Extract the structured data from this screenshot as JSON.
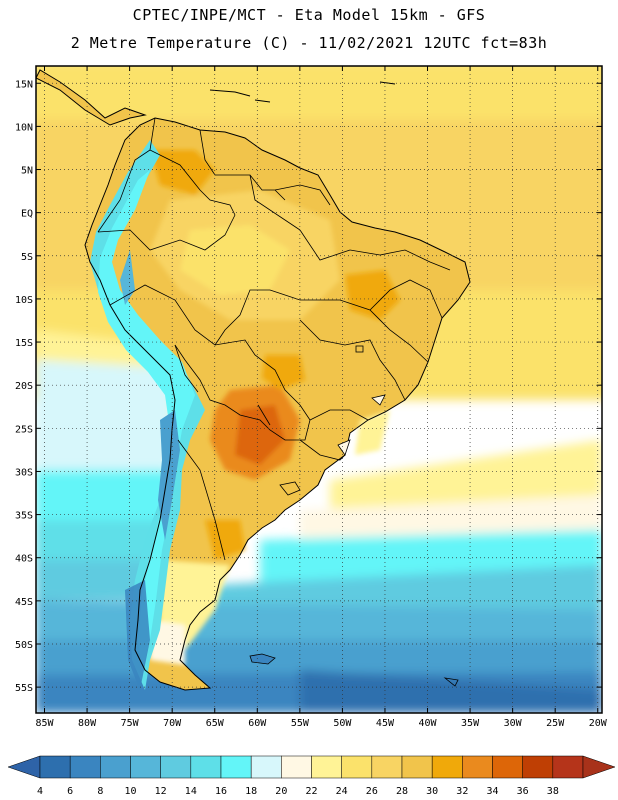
{
  "header": {
    "line1": "CPTEC/INPE/MCT -  Eta Model 15km - GFS",
    "line2": "2 Metre Temperature (C) - 11/02/2021 12UTC fct=83h"
  },
  "map": {
    "lon_range": [
      -86,
      -19.5
    ],
    "lat_range": [
      -58,
      17
    ],
    "lat_labels": [
      "15N",
      "10N",
      "5N",
      "EQ",
      "5S",
      "10S",
      "15S",
      "20S",
      "25S",
      "30S",
      "35S",
      "40S",
      "45S",
      "50S",
      "55S"
    ],
    "lon_labels": [
      "85W",
      "80W",
      "75W",
      "70W",
      "65W",
      "60W",
      "55W",
      "50W",
      "45W",
      "40W",
      "35W",
      "30W",
      "25W",
      "20W"
    ]
  },
  "colorbar": {
    "labels": [
      "4",
      "6",
      "8",
      "10",
      "12",
      "14",
      "16",
      "18",
      "20",
      "22",
      "24",
      "26",
      "28",
      "30",
      "32",
      "34",
      "36",
      "38"
    ],
    "colors": [
      "#2d6fae",
      "#3a85c0",
      "#4aa0cf",
      "#56b6d9",
      "#5fcbe0",
      "#5edfe8",
      "#63f5f8",
      "#d7f7fb",
      "#fff8e4",
      "#fff396",
      "#fbe26b",
      "#f8d463",
      "#f1c44b",
      "#f0a90a",
      "#ea8a1e",
      "#dd6608",
      "#bf3f04",
      "#b5341a"
    ],
    "low_color": "#2e63a8",
    "high_color": "#a8321a"
  }
}
